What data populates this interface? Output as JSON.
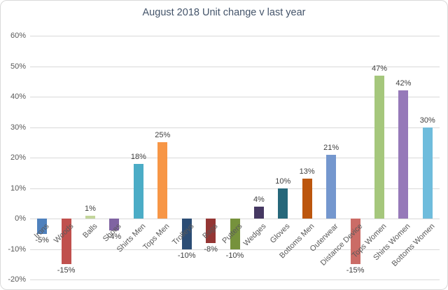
{
  "chart_data": {
    "type": "bar",
    "title": "August 2018 Unit change v last year",
    "categories": [
      "Irons",
      "Woods",
      "Balls",
      "Shoes",
      "Shirts Men",
      "Tops Men",
      "Trolleys",
      "Bags",
      "Putters",
      "Wedges",
      "Gloves",
      "Bottoms Men",
      "Outerwear",
      "Distance Device",
      "Tops Women",
      "Shirts Women",
      "Bottoms Women"
    ],
    "values": [
      -5,
      -15,
      1,
      -4,
      18,
      25,
      -10,
      -8,
      -10,
      4,
      10,
      13,
      21,
      -15,
      47,
      42,
      30
    ],
    "data_labels": [
      "-5%",
      "-15%",
      "1%",
      "-4%",
      "18%",
      "25%",
      "-10%",
      "-8%",
      "-10%",
      "4%",
      "10%",
      "13%",
      "21%",
      "-15%",
      "47%",
      "42%",
      "30%"
    ],
    "bar_colors": [
      "#4F81BD",
      "#C0504D",
      "#C3D69B",
      "#8064A2",
      "#4BACC6",
      "#F79646",
      "#2C4D75",
      "#943634",
      "#76923C",
      "#453862",
      "#26677A",
      "#BC560E",
      "#7497CE",
      "#CB6C66",
      "#A5C77C",
      "#9679B9",
      "#6FBCDC"
    ],
    "xlabel": "",
    "ylabel": "",
    "ylim": [
      -20,
      60
    ],
    "ytick_values": [
      60,
      50,
      40,
      30,
      20,
      10,
      0,
      -10,
      -20
    ],
    "ytick_labels": [
      "60%",
      "50%",
      "40%",
      "30%",
      "20%",
      "10%",
      "0%",
      "-10%",
      "-20%"
    ],
    "grid": true,
    "legend": "none",
    "colors": {
      "title_text": "#44546A",
      "axis_text": "#595959",
      "data_label_text": "#404040",
      "gridline": "#D9D9D9",
      "chart_border": "#D9D9D9",
      "background": "#FFFFFF"
    }
  }
}
